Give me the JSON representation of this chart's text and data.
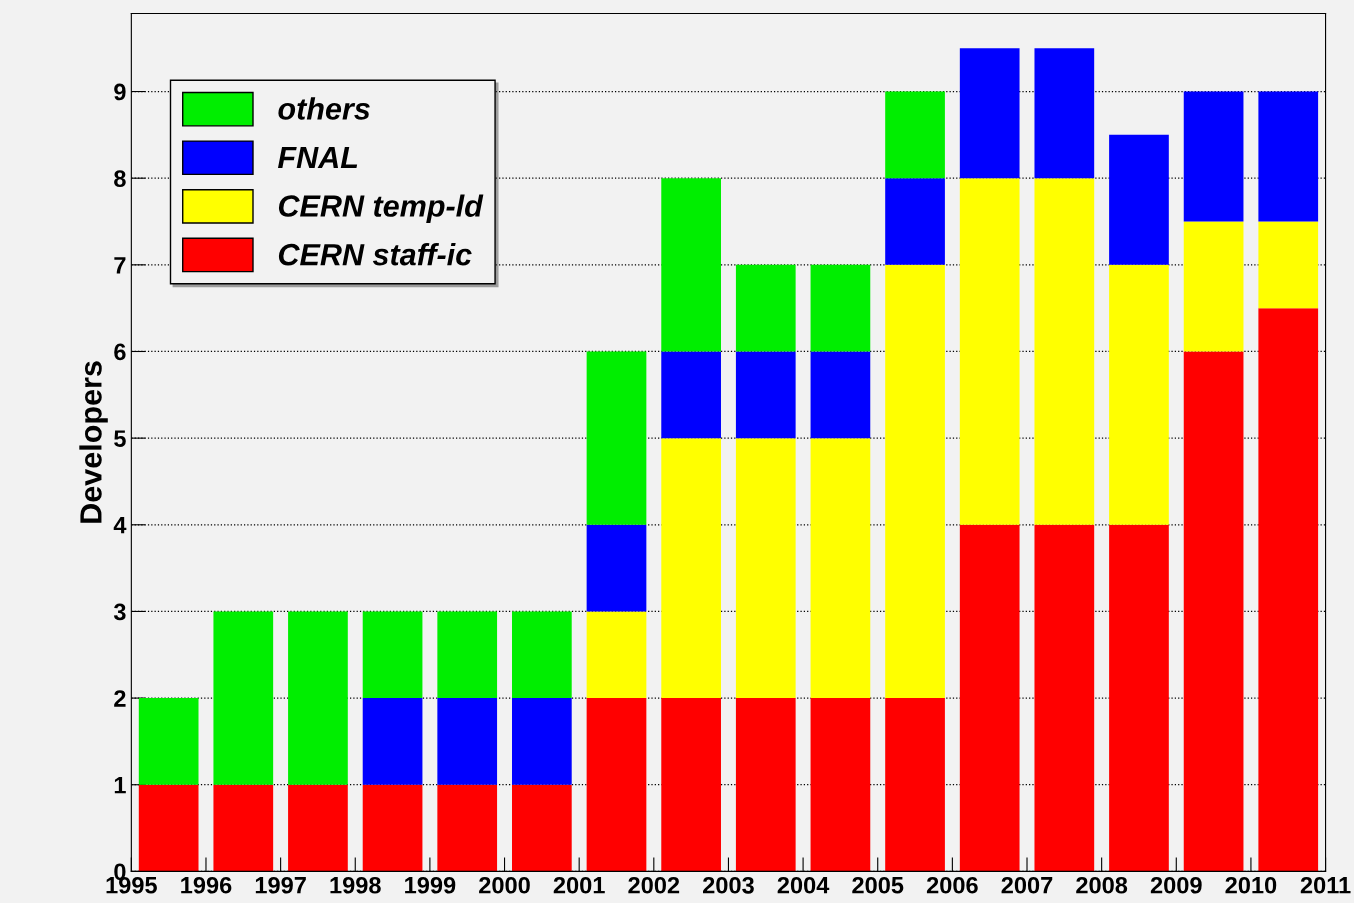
{
  "chart_data": {
    "type": "bar",
    "stacked": true,
    "ylabel": "Developers",
    "x": [
      1995.5,
      1996.5,
      1997.5,
      1998.5,
      1999.5,
      2000.5,
      2001.5,
      2002.5,
      2003.5,
      2004.5,
      2005.5,
      2006.5,
      2007.5,
      2008.5,
      2009.5,
      2010.5
    ],
    "xlim": [
      1995,
      2011
    ],
    "xticks": [
      1995,
      1996,
      1997,
      1998,
      1999,
      2000,
      2001,
      2002,
      2003,
      2004,
      2005,
      2006,
      2007,
      2008,
      2009,
      2010,
      2011
    ],
    "ylim": [
      0,
      9.9
    ],
    "yticks": [
      0,
      1,
      2,
      3,
      4,
      5,
      6,
      7,
      8,
      9
    ],
    "grid": "y",
    "legend": "top left",
    "series": [
      {
        "name": "CERN staff-ic",
        "color": "#ff0000",
        "values": [
          1,
          1,
          1,
          1,
          1,
          1,
          2,
          2,
          2,
          2,
          2,
          4,
          4,
          4,
          6,
          6.5
        ]
      },
      {
        "name": "CERN temp-ld",
        "color": "#ffff00",
        "values": [
          0,
          0,
          0,
          0,
          0,
          0,
          1,
          3,
          3,
          3,
          5,
          4,
          4,
          3,
          1.5,
          1
        ]
      },
      {
        "name": "FNAL",
        "color": "#0000ff",
        "values": [
          0,
          0,
          0,
          1,
          1,
          1,
          1,
          1,
          1,
          1,
          1,
          1.5,
          1.5,
          1.5,
          1.5,
          1.5
        ]
      },
      {
        "name": "others",
        "color": "#00ee00",
        "values": [
          1,
          2,
          2,
          1,
          1,
          1,
          2,
          2,
          1,
          1,
          1,
          0,
          0,
          0,
          0,
          0
        ]
      }
    ]
  }
}
